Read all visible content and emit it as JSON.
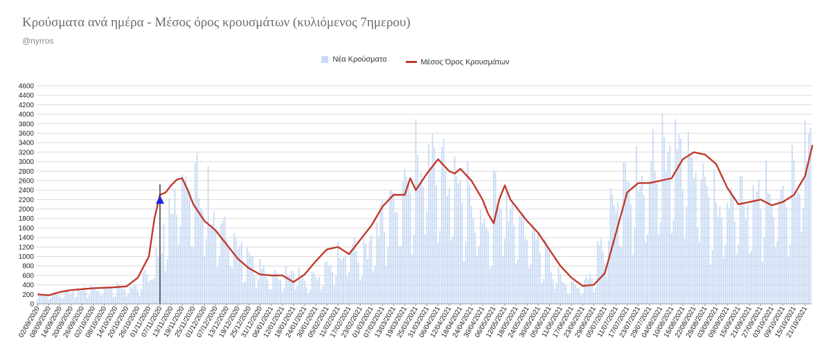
{
  "chart_data": {
    "type": "bar",
    "title": "Κρούσματα ανά ημέρα - Μέσος όρος κρουσμάτων (κυλιόμενος 7ημερου)",
    "subtitle": "@nyrros",
    "colors": {
      "bars": "#c9dbf5",
      "line": "#c0392b",
      "marker": "#1f25e0",
      "grid": "#d9d9d9"
    },
    "ylim": [
      0,
      4600
    ],
    "yticks": [
      0,
      200,
      400,
      600,
      800,
      1000,
      1200,
      1400,
      1600,
      1800,
      2000,
      2200,
      2400,
      2600,
      2800,
      3000,
      3200,
      3400,
      3600,
      3800,
      4000,
      4200,
      4400,
      4600
    ],
    "x_tick_labels": [
      "02/09/2020",
      "08/09/2020",
      "14/09/2020",
      "20/09/2020",
      "26/09/2020",
      "02/10/2020",
      "08/10/2020",
      "14/10/2020",
      "20/10/2020",
      "26/10/2020",
      "01/11/2020",
      "07/11/2020",
      "13/11/2020",
      "19/11/2020",
      "25/11/2020",
      "01/12/2020",
      "07/12/2020",
      "13/12/2020",
      "19/12/2020",
      "25/12/2020",
      "31/12/2020",
      "06/01/2021",
      "12/01/2021",
      "18/01/2021",
      "24/01/2021",
      "30/01/2021",
      "05/02/2021",
      "11/02/2021",
      "17/02/2021",
      "23/02/2021",
      "01/03/2021",
      "07/03/2021",
      "13/03/2021",
      "19/03/2021",
      "25/03/2021",
      "31/03/2021",
      "06/04/2021",
      "12/04/2021",
      "18/04/2021",
      "24/04/2021",
      "30/04/2021",
      "06/05/2021",
      "12/05/2021",
      "18/05/2021",
      "24/05/2021",
      "30/05/2021",
      "05/06/2021",
      "11/06/2021",
      "17/06/2021",
      "23/06/2021",
      "29/06/2021",
      "05/07/2021",
      "11/07/2021",
      "17/07/2021",
      "23/07/2021",
      "29/07/2021",
      "04/08/2021",
      "10/08/2021",
      "16/08/2021",
      "22/08/2021",
      "28/08/2021",
      "03/09/2021",
      "09/09/2021",
      "15/09/2021",
      "21/09/2021",
      "27/09/2021",
      "03/10/2021",
      "09/10/2021",
      "15/10/2021",
      "21/10/2021"
    ],
    "series": [
      {
        "name": "Νέα Κρούσματα",
        "kind": "bar",
        "daily_envelope_by_week": [
          180,
          200,
          250,
          290,
          320,
          330,
          350,
          360,
          370,
          600,
          1000,
          1800,
          2600,
          2600,
          2300,
          1800,
          1600,
          1300,
          1000,
          800,
          600,
          600,
          700,
          500,
          600,
          800,
          1000,
          1200,
          1100,
          1500,
          2000,
          2300,
          2600,
          2900,
          3200,
          2900,
          2700,
          2400,
          2000,
          1700,
          2300,
          2000,
          1700,
          1500,
          1100,
          700,
          450,
          400,
          600,
          1200,
          2200,
          2600,
          2600,
          2700,
          3200,
          3400,
          3300,
          3100,
          2600,
          2100,
          2100,
          2300,
          2200,
          2400,
          2300,
          2300,
          2600,
          3400
        ]
      },
      {
        "name": "Μέσος Όρος Κρουσμάτων",
        "kind": "line",
        "days": [
          "02/09/2020",
          "08/09/2020",
          "14/09/2020",
          "20/09/2020",
          "26/09/2020",
          "02/10/2020",
          "08/10/2020",
          "14/10/2020",
          "20/10/2020",
          "26/10/2020",
          "01/11/2020",
          "04/11/2020",
          "07/11/2020",
          "10/11/2020",
          "13/11/2020",
          "16/11/2020",
          "19/11/2020",
          "22/11/2020",
          "25/11/2020",
          "01/12/2020",
          "07/12/2020",
          "13/12/2020",
          "19/12/2020",
          "25/12/2020",
          "31/12/2020",
          "06/01/2021",
          "12/01/2021",
          "18/01/2021",
          "24/01/2021",
          "30/01/2021",
          "05/02/2021",
          "11/02/2021",
          "17/02/2021",
          "23/02/2021",
          "01/03/2021",
          "07/03/2021",
          "13/03/2021",
          "19/03/2021",
          "22/03/2021",
          "25/03/2021",
          "31/03/2021",
          "06/04/2021",
          "12/04/2021",
          "15/04/2021",
          "18/04/2021",
          "24/04/2021",
          "30/04/2021",
          "03/05/2021",
          "06/05/2021",
          "09/05/2021",
          "12/05/2021",
          "15/05/2021",
          "18/05/2021",
          "24/05/2021",
          "30/05/2021",
          "05/06/2021",
          "11/06/2021",
          "17/06/2021",
          "23/06/2021",
          "29/06/2021",
          "05/07/2021",
          "11/07/2021",
          "17/07/2021",
          "23/07/2021",
          "29/07/2021",
          "04/08/2021",
          "10/08/2021",
          "16/08/2021",
          "22/08/2021",
          "28/08/2021",
          "03/09/2021",
          "09/09/2021",
          "15/09/2021",
          "21/09/2021",
          "27/09/2021",
          "03/10/2021",
          "09/10/2021",
          "15/10/2021",
          "21/10/2021",
          "25/10/2021"
        ],
        "values": [
          200,
          180,
          250,
          290,
          310,
          330,
          340,
          350,
          370,
          550,
          1000,
          1800,
          2300,
          2350,
          2500,
          2620,
          2650,
          2400,
          2100,
          1750,
          1550,
          1250,
          950,
          750,
          620,
          600,
          600,
          460,
          620,
          900,
          1150,
          1200,
          1050,
          1350,
          1650,
          2050,
          2300,
          2300,
          2650,
          2400,
          2750,
          3050,
          2800,
          2750,
          2850,
          2600,
          2200,
          1900,
          1700,
          2200,
          2500,
          2200,
          2050,
          1750,
          1500,
          1150,
          800,
          550,
          380,
          400,
          650,
          1500,
          2350,
          2550,
          2550,
          2600,
          2650,
          3050,
          3200,
          3150,
          2950,
          2450,
          2100,
          2150,
          2200,
          2080,
          2150,
          2300,
          2700,
          3350
        ]
      },
      {
        "name": "marker",
        "kind": "annotation",
        "date": "07/11/2020",
        "value": 2200
      }
    ]
  }
}
